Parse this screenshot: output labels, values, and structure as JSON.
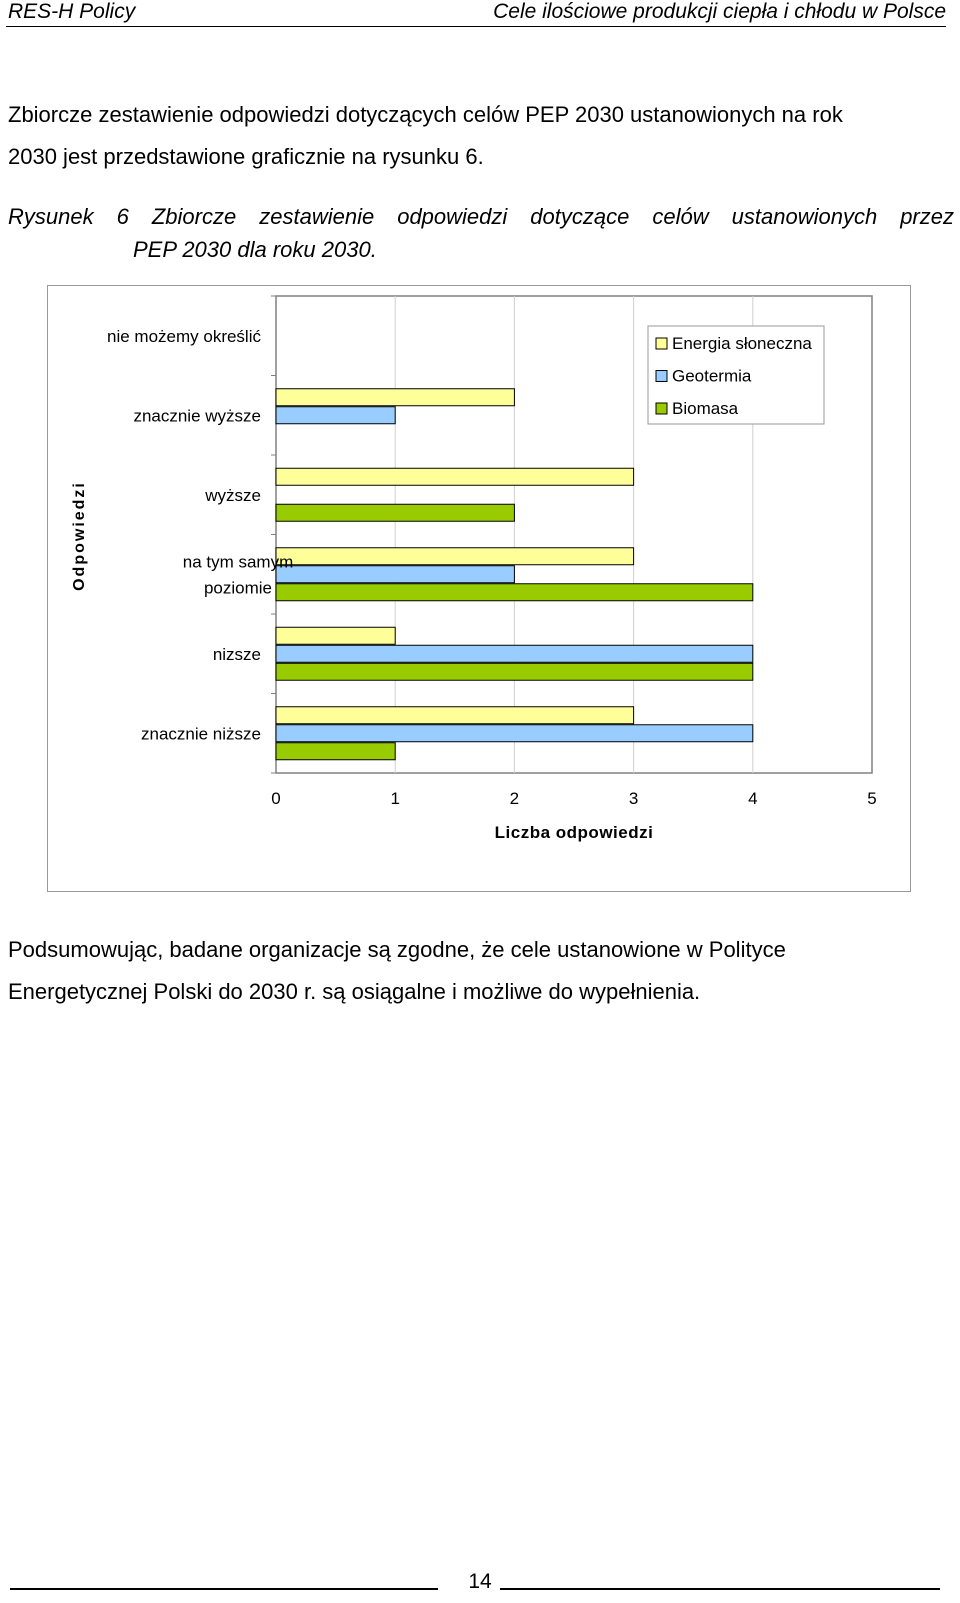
{
  "header": {
    "left": "RES-H Policy",
    "right": "Cele ilościowe produkcji ciepła i chłodu w Polsce"
  },
  "intro": {
    "line1": "Zbiorcze zestawienie odpowiedzi dotyczących celów PEP 2030 ustanowionych na rok",
    "line2": "2030 jest przedstawione graficznie na rysunku 6."
  },
  "caption": {
    "line1": "Rysunek 6 Zbiorcze zestawienie odpowiedzi dotyczące celów ustanowionych przez",
    "line2": "PEP 2030 dla roku 2030."
  },
  "chart_data": {
    "type": "bar",
    "orientation": "horizontal",
    "categories": [
      "nie możemy określić",
      "znacznie wyższe",
      "wyższe",
      "na tym samym poziomie",
      "nizsze",
      "znacznie niższe"
    ],
    "series": [
      {
        "name": "Energia słoneczna",
        "color": "#ffff99",
        "values": [
          0,
          2,
          3,
          3,
          1,
          3
        ]
      },
      {
        "name": "Geotermia",
        "color": "#99ccff",
        "values": [
          0,
          1,
          0,
          2,
          4,
          4
        ]
      },
      {
        "name": "Biomasa",
        "color": "#99cc00",
        "values": [
          0,
          0,
          2,
          4,
          4,
          1
        ]
      }
    ],
    "xlabel": "Liczba odpowiedzi",
    "ylabel": "Odpowiedzi",
    "xlim": [
      0,
      5
    ],
    "xticks": [
      "0",
      "1",
      "2",
      "3",
      "4",
      "5"
    ],
    "grid": "vertical",
    "legend": "top-right"
  },
  "conclusion": {
    "line1": "Podsumowując, badane organizacje są zgodne, że cele ustanowione w Polityce",
    "line2": "Energetycznej Polski do 2030 r. są osiągalne i możliwe do wypełnienia."
  },
  "page_number": "14"
}
